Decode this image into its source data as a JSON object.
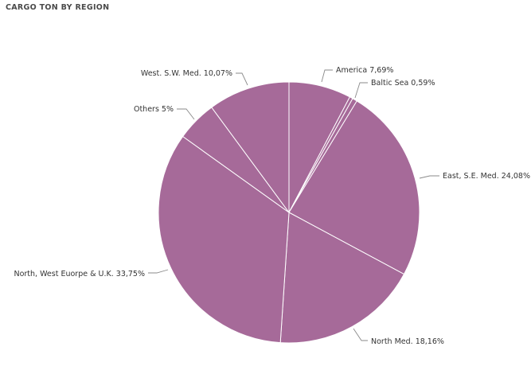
{
  "chart_title": "CARGO TON BY REGION",
  "chart_data": {
    "type": "pie",
    "title": "CARGO TON BY REGION",
    "slices": [
      {
        "label": "America",
        "value": 7.69,
        "display": "America 7,69%"
      },
      {
        "label": "",
        "value": 0.4,
        "display": ""
      },
      {
        "label": "Baltic Sea",
        "value": 0.59,
        "display": "Baltic Sea 0,59%"
      },
      {
        "label": "East, S.E. Med.",
        "value": 24.08,
        "display": "East, S.E. Med. 24,08%"
      },
      {
        "label": "North Med.",
        "value": 18.16,
        "display": "North Med. 18,16%"
      },
      {
        "label": "North, West Euorpe & U.K.",
        "value": 33.75,
        "display": "North, West Euorpe & U.K. 33,75%"
      },
      {
        "label": "Others",
        "value": 5,
        "display": "Others 5%"
      },
      {
        "label": "West. S.W. Med.",
        "value": 10.07,
        "display": "West. S.W. Med. 10,07%"
      }
    ],
    "colors": {
      "slice": "#a66a99",
      "border": "#ffffff",
      "leader": "#8a8a8a"
    }
  }
}
